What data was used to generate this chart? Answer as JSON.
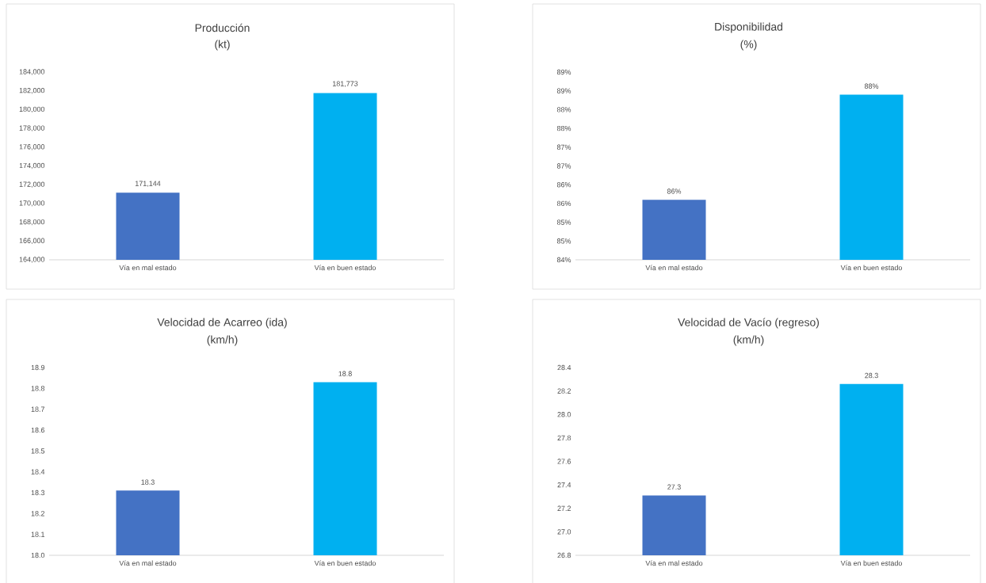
{
  "chart_data": [
    {
      "type": "bar",
      "title": "Producción",
      "subtitle": "(kt)",
      "categories": [
        "Vía en mal estado",
        "Vía en buen estado"
      ],
      "values": [
        171144,
        181773
      ],
      "colors": [
        "#4472c4",
        "#00b0f0"
      ],
      "value_labels": [
        "171,144",
        "181,773"
      ],
      "ylim": [
        164000,
        184000
      ],
      "yticks": [
        {
          "value": 164000,
          "label": "164,000"
        },
        {
          "value": 166000,
          "label": "166,000"
        },
        {
          "value": 168000,
          "label": "168,000"
        },
        {
          "value": 170000,
          "label": "170,000"
        },
        {
          "value": 172000,
          "label": "172,000"
        },
        {
          "value": 174000,
          "label": "174,000"
        },
        {
          "value": 176000,
          "label": "176,000"
        },
        {
          "value": 178000,
          "label": "178,000"
        },
        {
          "value": 180000,
          "label": "180,000"
        },
        {
          "value": 182000,
          "label": "182,000"
        },
        {
          "value": 184000,
          "label": "184,000"
        }
      ],
      "grid": false
    },
    {
      "type": "bar",
      "title": "Disponibilidad",
      "subtitle": "(%)",
      "categories": [
        "Vía en mal estado",
        "Vía en buen estado"
      ],
      "values": [
        85.6,
        88.4
      ],
      "colors": [
        "#4472c4",
        "#00b0f0"
      ],
      "value_labels": [
        "86%",
        "88%"
      ],
      "ylim": [
        84,
        89
      ],
      "yticks": [
        {
          "value": 84,
          "label": "84%"
        },
        {
          "value": 84.5,
          "label": "85%"
        },
        {
          "value": 85,
          "label": "85%"
        },
        {
          "value": 85.5,
          "label": "86%"
        },
        {
          "value": 86,
          "label": "86%"
        },
        {
          "value": 86.5,
          "label": "87%"
        },
        {
          "value": 87,
          "label": "87%"
        },
        {
          "value": 87.5,
          "label": "88%"
        },
        {
          "value": 88,
          "label": "88%"
        },
        {
          "value": 88.5,
          "label": "89%"
        },
        {
          "value": 89,
          "label": "89%"
        }
      ],
      "grid": false
    },
    {
      "type": "bar",
      "title": "Velocidad de Acarreo (ida)",
      "subtitle": "(km/h)",
      "categories": [
        "Vía en mal estado",
        "Vía en buen estado"
      ],
      "values": [
        18.31,
        18.83
      ],
      "colors": [
        "#4472c4",
        "#00b0f0"
      ],
      "value_labels": [
        "18.3",
        "18.8"
      ],
      "ylim": [
        18.0,
        18.9
      ],
      "yticks": [
        {
          "value": 18.0,
          "label": "18.0"
        },
        18.1,
        18.2,
        18.3,
        18.4,
        18.5,
        18.6,
        18.7,
        18.8,
        18.9
      ],
      "grid": false
    },
    {
      "type": "bar",
      "title": "Velocidad de Vacío (regreso)",
      "subtitle": "(km/h)",
      "categories": [
        "Vía en mal estado",
        "Vía en buen estado"
      ],
      "values": [
        27.31,
        28.26
      ],
      "colors": [
        "#4472c4",
        "#00b0f0"
      ],
      "value_labels": [
        "27.3",
        "28.3"
      ],
      "ylim": [
        26.8,
        28.4
      ],
      "yticks": [
        26.8,
        {
          "value": 27.0,
          "label": "27.0"
        },
        27.2,
        27.4,
        27.6,
        27.8,
        {
          "value": 28.0,
          "label": "28.0"
        },
        28.2,
        28.4
      ],
      "grid": false
    }
  ]
}
